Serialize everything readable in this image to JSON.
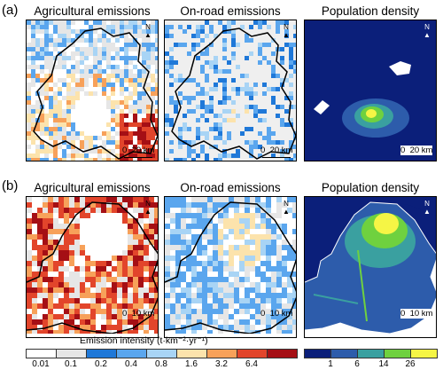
{
  "rows": [
    {
      "label": "(a)",
      "panels": [
        {
          "title": "Agricultural emissions",
          "scale": {
            "zero": "0",
            "end": "20 km"
          }
        },
        {
          "title": "On-road emissions",
          "scale": {
            "zero": "0",
            "end": "20 km"
          }
        },
        {
          "title": "Population density",
          "scale": {
            "zero": "0",
            "end": "20 km"
          }
        }
      ]
    },
    {
      "label": "(b)",
      "panels": [
        {
          "title": "Agricultural emissions",
          "scale": {
            "zero": "0",
            "end": "10 km"
          }
        },
        {
          "title": "On-road emissions",
          "scale": {
            "zero": "0",
            "end": "10 km"
          }
        },
        {
          "title": "Population density",
          "scale": {
            "zero": "0",
            "end": "10 km"
          }
        }
      ]
    }
  ],
  "north_label": "N",
  "emission_legend": {
    "title": "Emission intensity (t·km⁻²·yr⁻¹)",
    "ticks": [
      "0.01",
      "0.1",
      "0.2",
      "0.4",
      "0.8",
      "1.6",
      "3.2",
      "6.4"
    ],
    "colors": [
      "#ffffff",
      "#e6e6e6",
      "#1f78d8",
      "#5aa6ee",
      "#a8d4f5",
      "#fce3ac",
      "#f7a15a",
      "#e2452b",
      "#a50f15"
    ]
  },
  "population_legend": {
    "ticks": [
      "1",
      "6",
      "14",
      "26"
    ],
    "colors": [
      "#0b1f7a",
      "#2d5cab",
      "#3aa0a0",
      "#6fd13f",
      "#f5f545"
    ]
  }
}
